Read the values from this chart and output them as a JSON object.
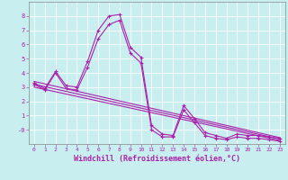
{
  "title": "",
  "xlabel": "Windchill (Refroidissement éolien,°C)",
  "ylabel": "",
  "xlim": [
    -0.5,
    23.5
  ],
  "ylim": [
    -1.0,
    9.0
  ],
  "yticks": [
    0,
    1,
    2,
    3,
    4,
    5,
    6,
    7,
    8
  ],
  "ytick_labels": [
    "-0",
    "1",
    "2",
    "3",
    "4",
    "5",
    "6",
    "7",
    "8"
  ],
  "xticks": [
    0,
    1,
    2,
    3,
    4,
    5,
    6,
    7,
    8,
    9,
    10,
    11,
    12,
    13,
    14,
    15,
    16,
    17,
    18,
    19,
    20,
    21,
    22,
    23
  ],
  "bg_color": "#c8eef0",
  "grid_color": "#ffffff",
  "line_color": "#aa22aa",
  "series": {
    "temp": {
      "x": [
        0,
        1,
        2,
        3,
        4,
        5,
        6,
        7,
        8,
        9,
        10,
        11,
        12,
        13,
        14,
        15,
        16,
        17,
        18,
        19,
        20,
        21,
        22,
        23
      ],
      "y": [
        3.3,
        2.9,
        4.1,
        3.1,
        3.0,
        4.8,
        7.0,
        8.0,
        8.1,
        5.8,
        5.1,
        0.3,
        -0.3,
        -0.4,
        1.7,
        0.8,
        -0.2,
        -0.4,
        -0.6,
        -0.3,
        -0.4,
        -0.4,
        -0.5,
        -0.6
      ]
    },
    "windchill": {
      "x": [
        0,
        1,
        2,
        3,
        4,
        5,
        6,
        7,
        8,
        9,
        10,
        11,
        12,
        13,
        14,
        15,
        16,
        17,
        18,
        19,
        20,
        21,
        22,
        23
      ],
      "y": [
        3.2,
        2.8,
        4.0,
        2.9,
        2.8,
        4.4,
        6.4,
        7.4,
        7.7,
        5.4,
        4.7,
        0.0,
        -0.5,
        -0.5,
        1.4,
        0.5,
        -0.4,
        -0.6,
        -0.7,
        -0.5,
        -0.6,
        -0.6,
        -0.7,
        -0.8
      ]
    },
    "linear1": {
      "x": [
        0,
        23
      ],
      "y": [
        3.4,
        -0.55
      ]
    },
    "linear2": {
      "x": [
        0,
        23
      ],
      "y": [
        3.2,
        -0.65
      ]
    },
    "linear3": {
      "x": [
        0,
        23
      ],
      "y": [
        3.0,
        -0.75
      ]
    }
  },
  "xlabel_fontsize": 6.0,
  "tick_fontsize": 5.0,
  "linewidth": 0.8,
  "marker_size": 3
}
